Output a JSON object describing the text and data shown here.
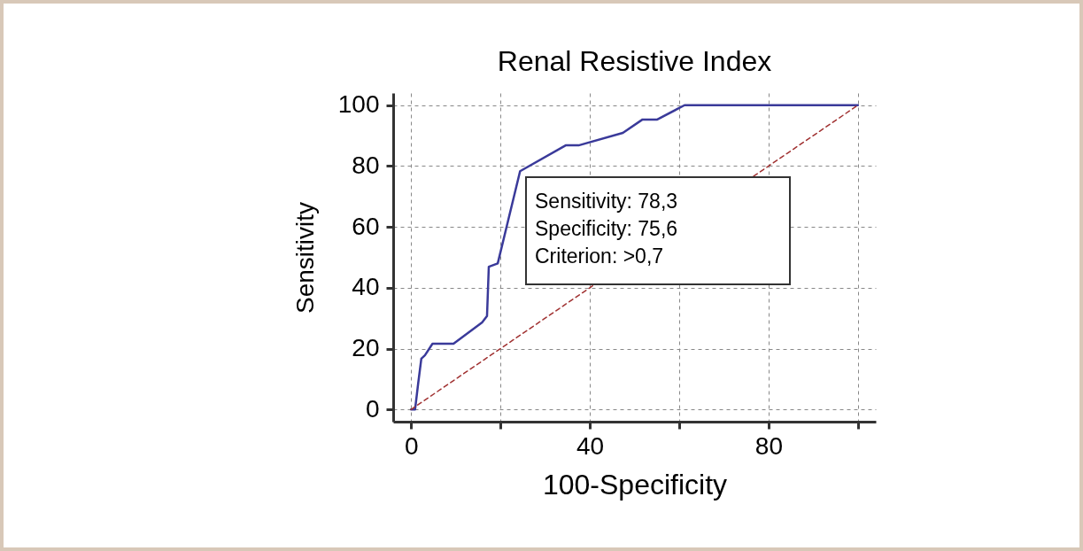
{
  "chart_data": {
    "type": "line",
    "title": "Renal Resistive Index",
    "xlabel": "100-Specificity",
    "ylabel": "Sensitivity",
    "xlim": [
      -4,
      104
    ],
    "ylim": [
      -4,
      104
    ],
    "xticks": [
      0,
      {
        "value": 20,
        "label": null
      },
      40,
      {
        "value": 60,
        "label": null
      },
      80,
      {
        "value": 100,
        "label": null
      }
    ],
    "yticks": [
      0,
      20,
      40,
      60,
      80,
      100
    ],
    "grid": true,
    "marker": "none",
    "series": [
      {
        "color": "#3a3a9a",
        "line_style": "solid",
        "x": [
          0,
          0.9,
          1.6,
          2.3,
          3.1,
          4.8,
          9.5,
          15.9,
          17,
          17.4,
          19.4,
          24.4,
          34.6,
          37.5,
          47.4,
          51.8,
          55.1,
          61.2,
          100
        ],
        "values": [
          0,
          0,
          8.6,
          16.7,
          17.8,
          21.6,
          21.6,
          28.6,
          30.7,
          46.9,
          48,
          78.3,
          86.8,
          86.8,
          90.9,
          95.3,
          95.3,
          100,
          100
        ]
      },
      {
        "color": "#a03030",
        "line_style": "dashed",
        "x": [
          0,
          100
        ],
        "values": [
          0,
          100
        ]
      }
    ],
    "annotations": [
      "Sensitivity: 78,3",
      "Specificity: 75,6",
      "Criterion: >0,7"
    ]
  }
}
